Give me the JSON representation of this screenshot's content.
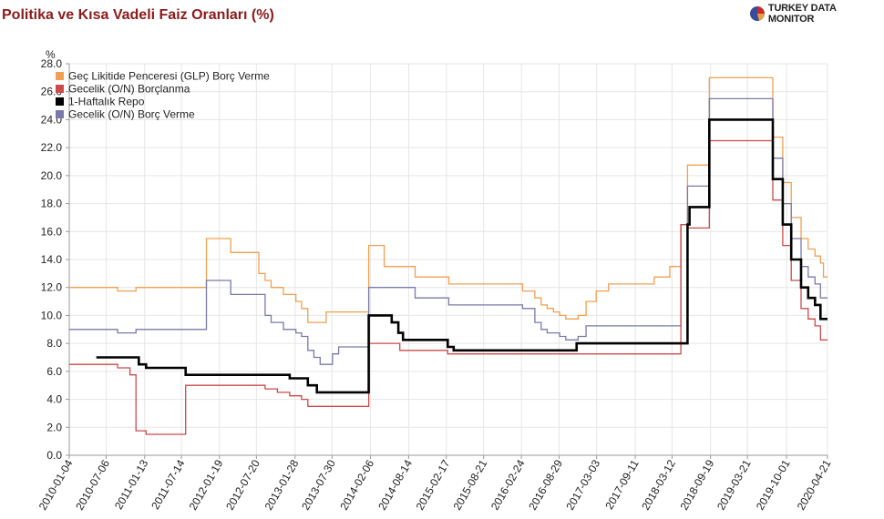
{
  "header": {
    "title": "Politika ve Kısa Vadeli Faiz Oranları (%)",
    "brand": "TURKEY DATA MONITOR"
  },
  "colors": {
    "glp": "#f0a050",
    "on_borrow": "#cc4a4a",
    "repo": "#000000",
    "on_lend": "#7a7aaa",
    "grid": "#e6e6e6",
    "axis": "#999999"
  },
  "chart_data": {
    "type": "line",
    "title": "Politika ve Kısa Vadeli Faiz Oranları (%)",
    "ylabel": "%",
    "ylim": [
      0,
      28
    ],
    "yticks": [
      "0.0",
      "2.0",
      "4.0",
      "6.0",
      "8.0",
      "10.0",
      "12.0",
      "14.0",
      "16.0",
      "18.0",
      "20.0",
      "22.0",
      "24.0",
      "26.0",
      "28.0"
    ],
    "xlim": [
      "2010-01-04",
      "2020-04-21"
    ],
    "xticks": [
      "2010-01-04",
      "2010-07-06",
      "2011-01-13",
      "2011-07-14",
      "2012-01-19",
      "2012-07-20",
      "2013-01-28",
      "2013-07-30",
      "2014-02-06",
      "2014-08-14",
      "2015-02-17",
      "2015-08-21",
      "2016-02-24",
      "2016-08-29",
      "2017-03-03",
      "2017-09-11",
      "2018-03-12",
      "2018-09-19",
      "2019-03-21",
      "2019-10-01",
      "2020-04-21"
    ],
    "grid": true,
    "legend_position": "top-left",
    "series": [
      {
        "name": "Geç Likitide Penceresi (GLP) Borç Verme",
        "key": "glp",
        "stroke": 1.3,
        "points": [
          [
            "2010-01-04",
            12.0
          ],
          [
            "2010-09-01",
            12.0
          ],
          [
            "2010-09-01",
            11.75
          ],
          [
            "2010-12-01",
            11.75
          ],
          [
            "2010-12-01",
            12.0
          ],
          [
            "2011-11-15",
            12.0
          ],
          [
            "2011-11-15",
            15.5
          ],
          [
            "2012-03-15",
            15.5
          ],
          [
            "2012-03-15",
            14.5
          ],
          [
            "2012-08-01",
            14.5
          ],
          [
            "2012-08-01",
            13.0
          ],
          [
            "2012-09-01",
            13.0
          ],
          [
            "2012-09-01",
            12.5
          ],
          [
            "2012-10-01",
            12.5
          ],
          [
            "2012-10-01",
            12.0
          ],
          [
            "2012-12-01",
            12.0
          ],
          [
            "2012-12-01",
            11.5
          ],
          [
            "2013-02-01",
            11.5
          ],
          [
            "2013-02-01",
            11.0
          ],
          [
            "2013-03-01",
            11.0
          ],
          [
            "2013-03-01",
            10.5
          ],
          [
            "2013-04-01",
            10.5
          ],
          [
            "2013-04-01",
            9.5
          ],
          [
            "2013-07-01",
            9.5
          ],
          [
            "2013-07-01",
            10.25
          ],
          [
            "2014-01-28",
            10.25
          ],
          [
            "2014-01-28",
            15.0
          ],
          [
            "2014-04-15",
            15.0
          ],
          [
            "2014-04-15",
            13.5
          ],
          [
            "2014-09-15",
            13.5
          ],
          [
            "2014-09-15",
            12.75
          ],
          [
            "2015-03-01",
            12.75
          ],
          [
            "2015-03-01",
            12.25
          ],
          [
            "2016-03-01",
            12.25
          ],
          [
            "2016-03-01",
            11.75
          ],
          [
            "2016-05-01",
            11.75
          ],
          [
            "2016-05-01",
            11.25
          ],
          [
            "2016-06-01",
            11.25
          ],
          [
            "2016-06-01",
            10.75
          ],
          [
            "2016-07-01",
            10.75
          ],
          [
            "2016-07-01",
            10.5
          ],
          [
            "2016-08-01",
            10.5
          ],
          [
            "2016-08-01",
            10.25
          ],
          [
            "2016-09-01",
            10.25
          ],
          [
            "2016-09-01",
            10.0
          ],
          [
            "2016-10-01",
            10.0
          ],
          [
            "2016-10-01",
            9.75
          ],
          [
            "2016-12-01",
            9.75
          ],
          [
            "2016-12-01",
            10.0
          ],
          [
            "2017-01-10",
            10.0
          ],
          [
            "2017-01-10",
            11.0
          ],
          [
            "2017-03-01",
            11.0
          ],
          [
            "2017-03-01",
            11.75
          ],
          [
            "2017-05-01",
            11.75
          ],
          [
            "2017-05-01",
            12.25
          ],
          [
            "2017-12-14",
            12.25
          ],
          [
            "2017-12-14",
            12.75
          ],
          [
            "2018-03-01",
            12.75
          ],
          [
            "2018-03-01",
            13.5
          ],
          [
            "2018-04-01",
            13.5
          ],
          [
            "2018-04-25",
            13.5
          ],
          [
            "2018-04-25",
            16.5
          ],
          [
            "2018-05-28",
            16.5
          ],
          [
            "2018-05-28",
            20.75
          ],
          [
            "2018-09-13",
            20.75
          ],
          [
            "2018-09-13",
            27.0
          ],
          [
            "2019-07-25",
            27.0
          ],
          [
            "2019-07-25",
            22.75
          ],
          [
            "2019-09-12",
            22.75
          ],
          [
            "2019-09-12",
            19.5
          ],
          [
            "2019-10-24",
            19.5
          ],
          [
            "2019-10-24",
            17.0
          ],
          [
            "2019-12-12",
            17.0
          ],
          [
            "2019-12-12",
            15.5
          ],
          [
            "2020-01-16",
            15.5
          ],
          [
            "2020-01-16",
            14.75
          ],
          [
            "2020-02-19",
            14.75
          ],
          [
            "2020-02-19",
            14.25
          ],
          [
            "2020-03-17",
            14.25
          ],
          [
            "2020-03-17",
            13.75
          ],
          [
            "2020-04-01",
            13.75
          ],
          [
            "2020-04-01",
            12.75
          ],
          [
            "2020-04-21",
            12.75
          ]
        ]
      },
      {
        "name": "Gecelik (O/N) Borçlanma",
        "key": "on_borrow",
        "stroke": 1.3,
        "points": [
          [
            "2010-01-04",
            6.5
          ],
          [
            "2010-09-01",
            6.5
          ],
          [
            "2010-09-01",
            6.25
          ],
          [
            "2010-11-01",
            6.25
          ],
          [
            "2010-11-01",
            5.75
          ],
          [
            "2010-12-01",
            5.75
          ],
          [
            "2010-12-01",
            1.75
          ],
          [
            "2011-01-20",
            1.75
          ],
          [
            "2011-01-20",
            1.5
          ],
          [
            "2011-08-04",
            1.5
          ],
          [
            "2011-08-04",
            5.0
          ],
          [
            "2012-09-01",
            5.0
          ],
          [
            "2012-09-01",
            4.75
          ],
          [
            "2012-11-01",
            4.75
          ],
          [
            "2012-11-01",
            4.5
          ],
          [
            "2013-01-01",
            4.5
          ],
          [
            "2013-01-01",
            4.25
          ],
          [
            "2013-03-01",
            4.25
          ],
          [
            "2013-03-01",
            4.0
          ],
          [
            "2013-04-01",
            4.0
          ],
          [
            "2013-04-01",
            3.5
          ],
          [
            "2014-01-28",
            3.5
          ],
          [
            "2014-01-28",
            8.0
          ],
          [
            "2014-07-01",
            8.0
          ],
          [
            "2014-07-01",
            7.5
          ],
          [
            "2015-02-24",
            7.5
          ],
          [
            "2015-02-24",
            7.25
          ],
          [
            "2018-04-25",
            7.25
          ],
          [
            "2018-04-25",
            16.5
          ],
          [
            "2018-05-28",
            16.5
          ],
          [
            "2018-05-28",
            16.25
          ],
          [
            "2018-09-13",
            16.25
          ],
          [
            "2018-09-13",
            22.5
          ],
          [
            "2019-07-25",
            22.5
          ],
          [
            "2019-07-25",
            18.25
          ],
          [
            "2019-09-12",
            18.25
          ],
          [
            "2019-09-12",
            15.0
          ],
          [
            "2019-10-24",
            15.0
          ],
          [
            "2019-10-24",
            12.5
          ],
          [
            "2019-12-12",
            12.5
          ],
          [
            "2019-12-12",
            10.5
          ],
          [
            "2020-01-16",
            10.5
          ],
          [
            "2020-01-16",
            9.75
          ],
          [
            "2020-02-19",
            9.75
          ],
          [
            "2020-02-19",
            9.25
          ],
          [
            "2020-03-17",
            9.25
          ],
          [
            "2020-03-17",
            8.25
          ],
          [
            "2020-04-21",
            8.25
          ]
        ]
      },
      {
        "name": "1-Haftalık Repo",
        "key": "repo",
        "stroke": 2.6,
        "points": [
          [
            "2010-05-18",
            7.0
          ],
          [
            "2010-12-15",
            7.0
          ],
          [
            "2010-12-15",
            6.5
          ],
          [
            "2011-01-20",
            6.5
          ],
          [
            "2011-01-20",
            6.25
          ],
          [
            "2011-08-04",
            6.25
          ],
          [
            "2011-08-04",
            5.75
          ],
          [
            "2013-01-01",
            5.75
          ],
          [
            "2013-01-01",
            5.5
          ],
          [
            "2013-04-01",
            5.5
          ],
          [
            "2013-04-01",
            5.0
          ],
          [
            "2013-05-16",
            5.0
          ],
          [
            "2013-05-16",
            4.5
          ],
          [
            "2014-01-28",
            4.5
          ],
          [
            "2014-01-28",
            10.0
          ],
          [
            "2014-05-22",
            10.0
          ],
          [
            "2014-05-22",
            9.5
          ],
          [
            "2014-06-24",
            9.5
          ],
          [
            "2014-06-24",
            8.75
          ],
          [
            "2014-07-17",
            8.75
          ],
          [
            "2014-07-17",
            8.25
          ],
          [
            "2015-02-24",
            8.25
          ],
          [
            "2015-02-24",
            7.75
          ],
          [
            "2015-03-25",
            7.75
          ],
          [
            "2015-03-25",
            7.5
          ],
          [
            "2016-11-24",
            7.5
          ],
          [
            "2016-11-24",
            8.0
          ],
          [
            "2018-05-28",
            8.0
          ],
          [
            "2018-05-28",
            16.5
          ],
          [
            "2018-06-07",
            16.5
          ],
          [
            "2018-06-07",
            17.75
          ],
          [
            "2018-09-13",
            17.75
          ],
          [
            "2018-09-13",
            24.0
          ],
          [
            "2019-07-25",
            24.0
          ],
          [
            "2019-07-25",
            19.75
          ],
          [
            "2019-09-12",
            19.75
          ],
          [
            "2019-09-12",
            16.5
          ],
          [
            "2019-10-24",
            16.5
          ],
          [
            "2019-10-24",
            14.0
          ],
          [
            "2019-12-12",
            14.0
          ],
          [
            "2019-12-12",
            12.0
          ],
          [
            "2020-01-16",
            12.0
          ],
          [
            "2020-01-16",
            11.25
          ],
          [
            "2020-02-19",
            11.25
          ],
          [
            "2020-02-19",
            10.75
          ],
          [
            "2020-03-17",
            10.75
          ],
          [
            "2020-03-17",
            9.75
          ],
          [
            "2020-04-21",
            9.75
          ]
        ]
      },
      {
        "name": "Gecelik (O/N) Borç Verme",
        "key": "on_lend",
        "stroke": 1.3,
        "points": [
          [
            "2010-01-04",
            9.0
          ],
          [
            "2010-09-01",
            9.0
          ],
          [
            "2010-09-01",
            8.75
          ],
          [
            "2010-12-01",
            8.75
          ],
          [
            "2010-12-01",
            9.0
          ],
          [
            "2011-11-15",
            9.0
          ],
          [
            "2011-11-15",
            12.5
          ],
          [
            "2012-03-15",
            12.5
          ],
          [
            "2012-03-15",
            11.5
          ],
          [
            "2012-09-01",
            11.5
          ],
          [
            "2012-09-01",
            10.0
          ],
          [
            "2012-10-01",
            10.0
          ],
          [
            "2012-10-01",
            9.5
          ],
          [
            "2012-12-01",
            9.5
          ],
          [
            "2012-12-01",
            9.0
          ],
          [
            "2013-02-01",
            9.0
          ],
          [
            "2013-02-01",
            8.75
          ],
          [
            "2013-03-01",
            8.75
          ],
          [
            "2013-03-01",
            8.5
          ],
          [
            "2013-04-01",
            8.5
          ],
          [
            "2013-04-01",
            7.5
          ],
          [
            "2013-05-01",
            7.5
          ],
          [
            "2013-05-01",
            7.0
          ],
          [
            "2013-06-01",
            7.0
          ],
          [
            "2013-06-01",
            6.5
          ],
          [
            "2013-08-01",
            6.5
          ],
          [
            "2013-08-01",
            7.25
          ],
          [
            "2013-09-01",
            7.25
          ],
          [
            "2013-09-01",
            7.75
          ],
          [
            "2014-01-28",
            7.75
          ],
          [
            "2014-01-28",
            12.0
          ],
          [
            "2014-09-15",
            12.0
          ],
          [
            "2014-09-15",
            11.25
          ],
          [
            "2015-03-01",
            11.25
          ],
          [
            "2015-03-01",
            10.75
          ],
          [
            "2016-03-01",
            10.75
          ],
          [
            "2016-03-01",
            10.5
          ],
          [
            "2016-05-01",
            10.5
          ],
          [
            "2016-05-01",
            9.5
          ],
          [
            "2016-06-01",
            9.5
          ],
          [
            "2016-06-01",
            9.0
          ],
          [
            "2016-07-01",
            9.0
          ],
          [
            "2016-07-01",
            8.75
          ],
          [
            "2016-09-01",
            8.75
          ],
          [
            "2016-09-01",
            8.5
          ],
          [
            "2016-10-01",
            8.5
          ],
          [
            "2016-10-01",
            8.25
          ],
          [
            "2016-12-01",
            8.25
          ],
          [
            "2016-12-01",
            8.5
          ],
          [
            "2017-01-10",
            8.5
          ],
          [
            "2017-01-10",
            9.25
          ],
          [
            "2018-04-25",
            9.25
          ],
          [
            "2018-04-25",
            16.5
          ],
          [
            "2018-05-28",
            16.5
          ],
          [
            "2018-05-28",
            19.25
          ],
          [
            "2018-09-13",
            19.25
          ],
          [
            "2018-09-13",
            25.5
          ],
          [
            "2019-07-25",
            25.5
          ],
          [
            "2019-07-25",
            21.25
          ],
          [
            "2019-09-12",
            21.25
          ],
          [
            "2019-09-12",
            18.0
          ],
          [
            "2019-10-24",
            18.0
          ],
          [
            "2019-10-24",
            15.5
          ],
          [
            "2019-12-12",
            15.5
          ],
          [
            "2019-12-12",
            13.5
          ],
          [
            "2020-01-16",
            13.5
          ],
          [
            "2020-01-16",
            12.75
          ],
          [
            "2020-02-19",
            12.75
          ],
          [
            "2020-02-19",
            12.25
          ],
          [
            "2020-03-17",
            12.25
          ],
          [
            "2020-03-17",
            11.25
          ],
          [
            "2020-04-21",
            11.25
          ]
        ]
      }
    ]
  }
}
